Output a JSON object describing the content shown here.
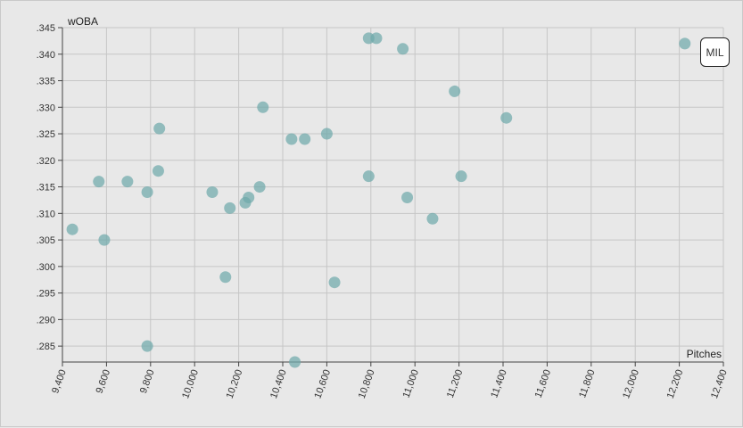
{
  "chart_data": {
    "type": "scatter",
    "xlabel": "Pitches",
    "ylabel": "wOBA",
    "xlim": [
      9400,
      12400
    ],
    "ylim": [
      0.282,
      0.345
    ],
    "x_ticks": [
      "9,400",
      "9,600",
      "9,800",
      "10,000",
      "10,200",
      "10,400",
      "10,600",
      "10,800",
      "11,000",
      "11,200",
      "11,400",
      "11,600",
      "11,800",
      "12,000",
      "12,200",
      "12,400"
    ],
    "y_ticks": [
      ".345",
      ".340",
      ".335",
      ".330",
      ".325",
      ".320",
      ".315",
      ".310",
      ".305",
      ".300",
      ".295",
      ".290",
      ".285"
    ],
    "grid": true,
    "point_color": "#6fa9aa",
    "highlight_label": "MIL",
    "points": [
      {
        "x": 9445,
        "y": 0.307
      },
      {
        "x": 9565,
        "y": 0.316
      },
      {
        "x": 9590,
        "y": 0.305
      },
      {
        "x": 9695,
        "y": 0.316
      },
      {
        "x": 9785,
        "y": 0.314
      },
      {
        "x": 9785,
        "y": 0.285
      },
      {
        "x": 9835,
        "y": 0.318
      },
      {
        "x": 9840,
        "y": 0.326
      },
      {
        "x": 10080,
        "y": 0.314
      },
      {
        "x": 10140,
        "y": 0.298
      },
      {
        "x": 10160,
        "y": 0.311
      },
      {
        "x": 10230,
        "y": 0.312
      },
      {
        "x": 10245,
        "y": 0.313
      },
      {
        "x": 10295,
        "y": 0.315
      },
      {
        "x": 10310,
        "y": 0.33
      },
      {
        "x": 10440,
        "y": 0.324
      },
      {
        "x": 10455,
        "y": 0.282
      },
      {
        "x": 10500,
        "y": 0.324
      },
      {
        "x": 10600,
        "y": 0.325
      },
      {
        "x": 10635,
        "y": 0.297
      },
      {
        "x": 10790,
        "y": 0.343
      },
      {
        "x": 10790,
        "y": 0.317
      },
      {
        "x": 10825,
        "y": 0.343
      },
      {
        "x": 10945,
        "y": 0.341
      },
      {
        "x": 10965,
        "y": 0.313
      },
      {
        "x": 11080,
        "y": 0.309
      },
      {
        "x": 11180,
        "y": 0.333
      },
      {
        "x": 11210,
        "y": 0.317
      },
      {
        "x": 11415,
        "y": 0.328
      },
      {
        "x": 12225,
        "y": 0.342
      }
    ]
  }
}
